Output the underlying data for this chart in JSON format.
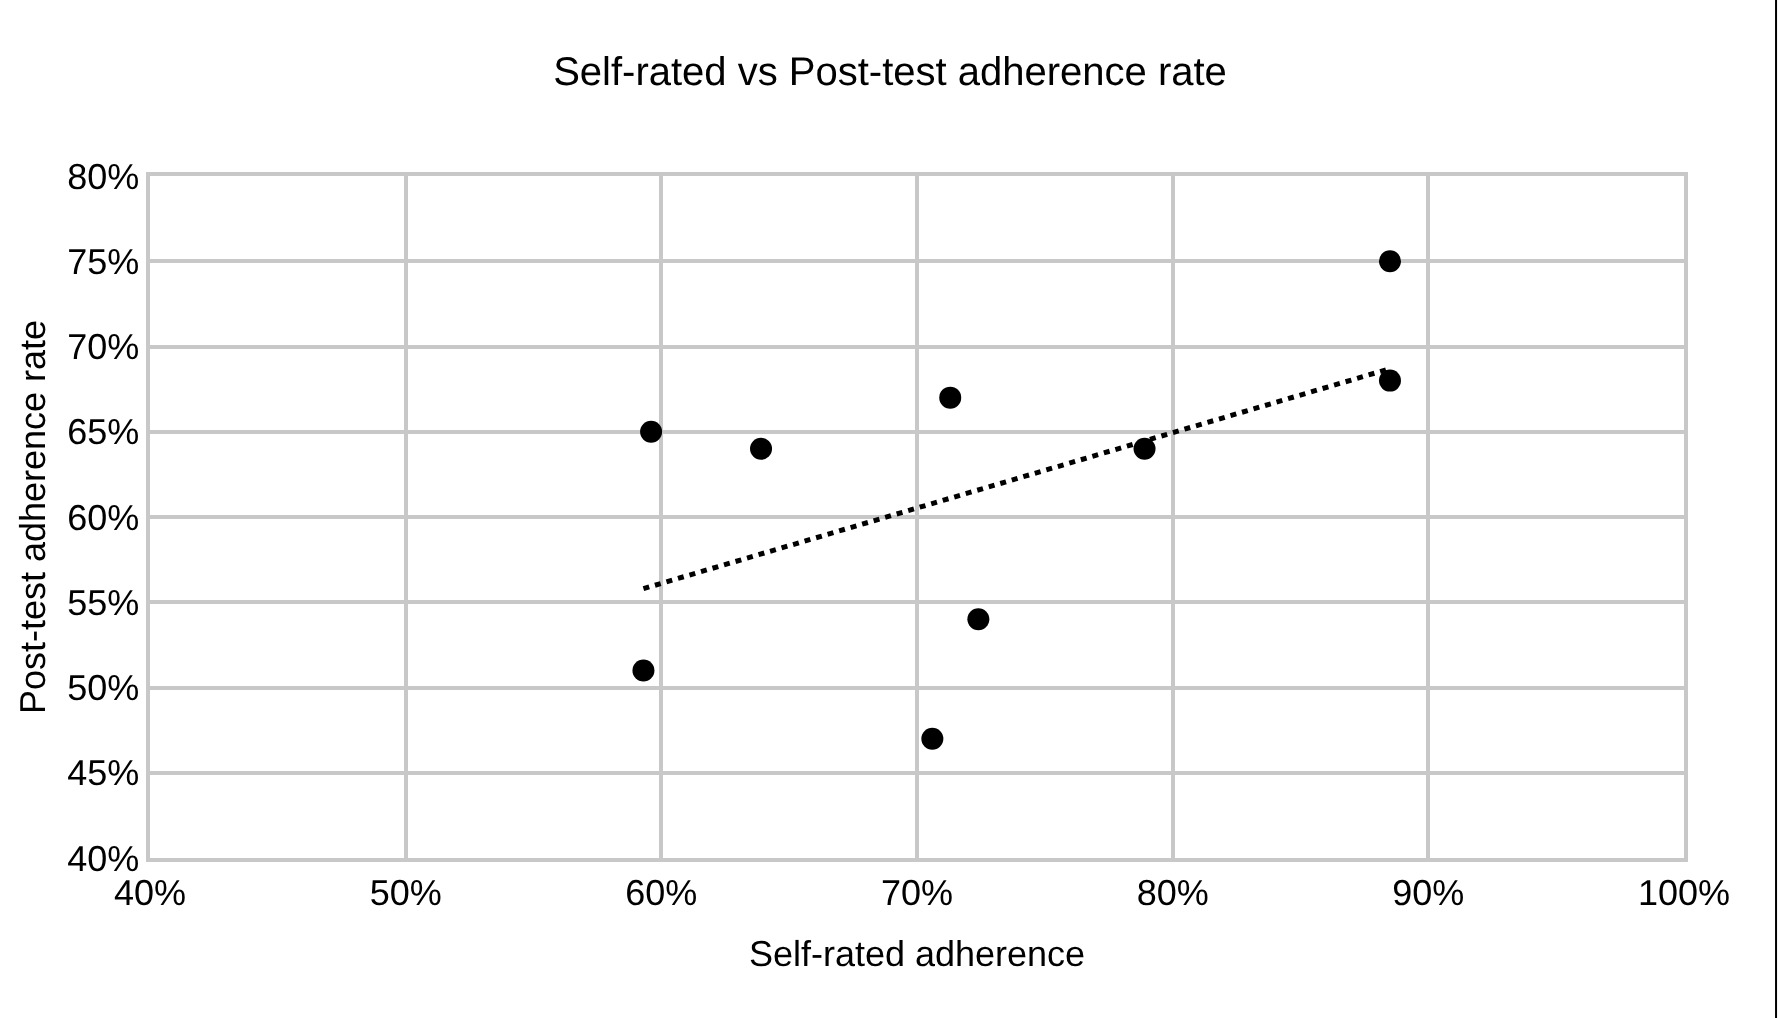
{
  "chart_data": {
    "type": "scatter",
    "title": "Self-rated vs Post-test adherence rate",
    "xlabel": "Self-rated adherence",
    "ylabel": "Post-test adherence rate",
    "series": [
      {
        "color": "#000000",
        "marker": "circle",
        "x": [
          59.6,
          63.9,
          59.3,
          71.3,
          72.4,
          70.6,
          78.9,
          88.5,
          88.5
        ],
        "values": [
          65,
          64,
          51,
          67,
          54,
          47,
          64,
          75,
          68
        ]
      },
      {
        "type": "line",
        "color": "#000000",
        "line_style": "dotted",
        "x": [
          59.3,
          88.5
        ],
        "values": [
          55.8,
          68.7
        ]
      }
    ],
    "xlim": [
      40,
      100
    ],
    "ylim": [
      40,
      80
    ],
    "xticks": [
      {
        "value": 40,
        "label": "40%"
      },
      {
        "value": 50,
        "label": "50%"
      },
      {
        "value": 60,
        "label": "60%"
      },
      {
        "value": 70,
        "label": "70%"
      },
      {
        "value": 80,
        "label": "80%"
      },
      {
        "value": 90,
        "label": "90%"
      },
      {
        "value": 100,
        "label": "100%"
      }
    ],
    "yticks": [
      {
        "value": 40,
        "label": "40%"
      },
      {
        "value": 45,
        "label": "45%"
      },
      {
        "value": 50,
        "label": "50%"
      },
      {
        "value": 55,
        "label": "55%"
      },
      {
        "value": 60,
        "label": "60%"
      },
      {
        "value": 65,
        "label": "65%"
      },
      {
        "value": 70,
        "label": "70%"
      },
      {
        "value": 75,
        "label": "75%"
      },
      {
        "value": 80,
        "label": "80%"
      }
    ],
    "grid": true
  }
}
